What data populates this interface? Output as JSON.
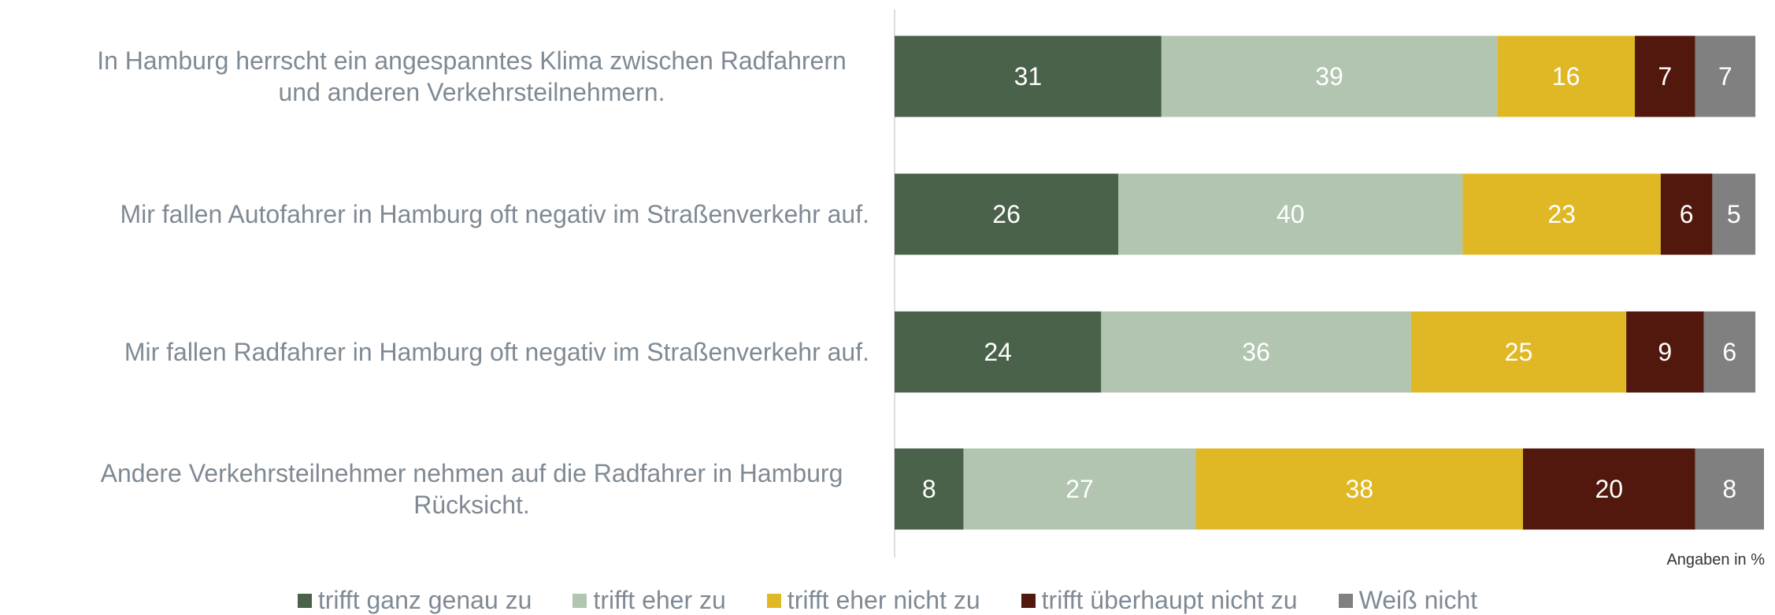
{
  "chart_data": {
    "type": "stacked-bar-horizontal",
    "categories": [
      "In Hamburg herrscht ein angespanntes Klima zwischen Radfahrern und anderen Verkehrsteilnehmern.",
      "Mir fallen Autofahrer in Hamburg oft negativ im Straßenverkehr auf.",
      "Mir fallen Radfahrer in Hamburg oft negativ im Straßenverkehr auf.",
      "Andere Verkehrsteilnehmer nehmen auf die Radfahrer in Hamburg Rücksicht."
    ],
    "series": [
      {
        "name": "trifft ganz genau zu",
        "color": "#4a6249",
        "values": [
          31,
          26,
          24,
          8
        ]
      },
      {
        "name": "trifft eher zu",
        "color": "#b1c5b0",
        "values": [
          39,
          40,
          36,
          27
        ]
      },
      {
        "name": "trifft eher nicht zu",
        "color": "#e0b826",
        "values": [
          16,
          23,
          25,
          38
        ]
      },
      {
        "name": "trifft überhaupt nicht zu",
        "color": "#52180d",
        "values": [
          7,
          6,
          9,
          20
        ]
      },
      {
        "name": "Weiß nicht",
        "color": "#808080",
        "values": [
          7,
          5,
          6,
          8
        ]
      }
    ],
    "xlim": [
      0,
      101
    ],
    "note": "Angaben in %"
  }
}
